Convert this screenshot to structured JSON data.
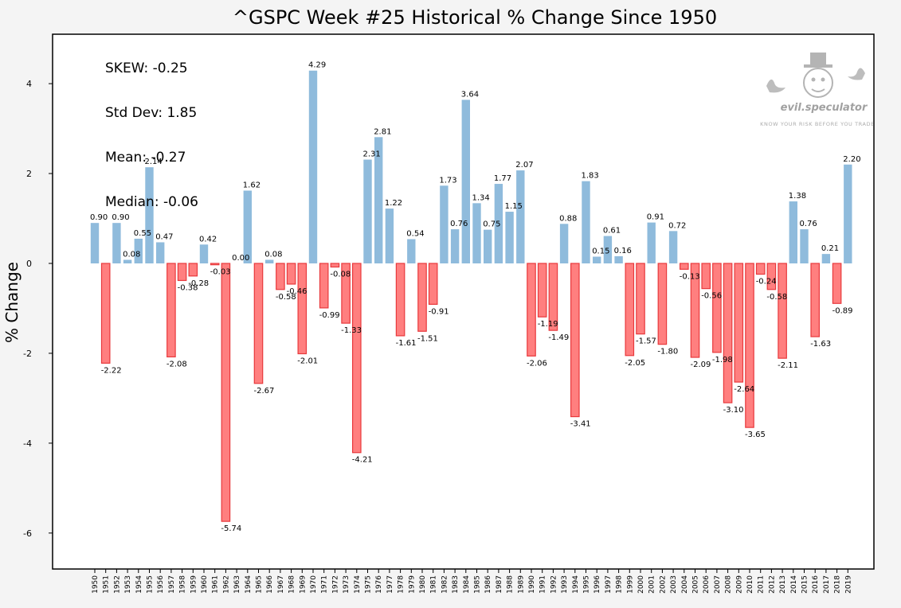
{
  "chart_data": {
    "type": "bar",
    "title": "^GSPC Week #25 Historical % Change Since 1950",
    "xlabel": "",
    "ylabel": "% Change",
    "ylim": [
      -6.8,
      5.1
    ],
    "yticks": [
      4,
      2,
      0,
      -2,
      -4,
      -6
    ],
    "grid": false,
    "categories": [
      "1950",
      "1951",
      "1952",
      "1953",
      "1954",
      "1955",
      "1956",
      "1957",
      "1958",
      "1959",
      "1960",
      "1961",
      "1962",
      "1963",
      "1964",
      "1965",
      "1966",
      "1967",
      "1968",
      "1969",
      "1970",
      "1971",
      "1972",
      "1973",
      "1974",
      "1975",
      "1976",
      "1977",
      "1978",
      "1979",
      "1980",
      "1981",
      "1982",
      "1983",
      "1984",
      "1985",
      "1986",
      "1987",
      "1988",
      "1989",
      "1990",
      "1991",
      "1992",
      "1993",
      "1994",
      "1995",
      "1996",
      "1997",
      "1998",
      "1999",
      "2000",
      "2001",
      "2002",
      "2003",
      "2004",
      "2005",
      "2006",
      "2007",
      "2008",
      "2009",
      "2010",
      "2011",
      "2012",
      "2013",
      "2014",
      "2015",
      "2016",
      "2017",
      "2018",
      "2019"
    ],
    "values": [
      0.9,
      -2.22,
      0.9,
      0.08,
      0.55,
      2.14,
      0.47,
      -2.08,
      -0.38,
      -0.28,
      0.42,
      -0.03,
      -5.74,
      0.0,
      1.62,
      -2.67,
      0.08,
      -0.58,
      -0.46,
      -2.01,
      4.29,
      -0.99,
      -0.08,
      -1.33,
      -4.21,
      2.31,
      2.81,
      1.22,
      -1.61,
      0.54,
      -1.51,
      -0.91,
      1.73,
      0.76,
      3.64,
      1.34,
      0.75,
      1.77,
      1.15,
      2.07,
      -2.06,
      -1.19,
      -1.49,
      0.88,
      -3.41,
      1.83,
      0.15,
      0.61,
      0.16,
      -2.05,
      -1.57,
      0.91,
      -1.8,
      0.72,
      -0.13,
      -2.09,
      -0.56,
      -1.98,
      -3.1,
      -2.64,
      -3.65,
      -0.24,
      -0.58,
      -2.11,
      1.38,
      0.76,
      -1.63,
      0.21,
      -0.89,
      2.2
    ],
    "labels": [
      "0.90",
      "-2.22",
      "0.90",
      "0.08",
      "0.55",
      "2.14",
      "0.47",
      "-2.08",
      "-0.38",
      "-0.28",
      "0.42",
      "-0.03",
      "-5.74",
      "0.00",
      "1.62",
      "-2.67",
      "0.08",
      "-0.58",
      "-0.46",
      "-2.01",
      "4.29",
      "-0.99",
      "-0.08",
      "-1.33",
      "-4.21",
      "2.31",
      "2.81",
      "1.22",
      "-1.61",
      "0.54",
      "-1.51",
      "-0.91",
      "1.73",
      "0.76",
      "3.64",
      "1.34",
      "0.75",
      "1.77",
      "1.15",
      "2.07",
      "-2.06",
      "-1.19",
      "-1.49",
      "0.88",
      "-3.41",
      "1.83",
      "0.15",
      "0.61",
      "0.16",
      "-2.05",
      "-1.57",
      "0.91",
      "-1.80",
      "0.72",
      "-0.13",
      "-2.09",
      "-0.56",
      "-1.98",
      "-3.10",
      "-2.64",
      "-3.65",
      "-0.24",
      "-0.58",
      "-2.11",
      "1.38",
      "0.76",
      "-1.63",
      "0.21",
      "-0.89",
      "2.20"
    ],
    "colors": {
      "positive_fill": "#8fbbdc",
      "negative_fill": "#ff7f7f",
      "negative_stroke": "#e8393c",
      "background": "#ffffff",
      "page": "#f4f4f4",
      "text": "#000000"
    },
    "annotations": [
      {
        "label": "SKEW: -0.25"
      },
      {
        "label": "Std Dev: 1.85"
      },
      {
        "label": "Mean: -0.27"
      },
      {
        "label": "Median: -0.06"
      }
    ],
    "logo": {
      "text": "evil.speculator",
      "tagline": "KNOW YOUR RISK BEFORE YOU TRADE",
      "icon": "top-hat-bulldog-icon"
    }
  }
}
